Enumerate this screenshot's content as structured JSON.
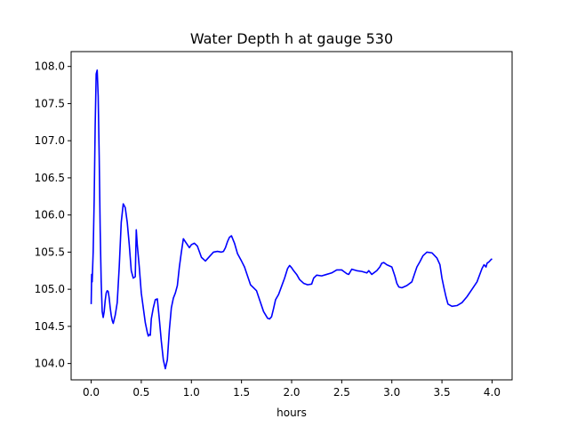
{
  "chart_data": {
    "type": "line",
    "title": "Water Depth h at gauge 530",
    "xlabel": "hours",
    "ylabel": "",
    "xlim": [
      -0.2,
      4.2
    ],
    "ylim": [
      103.78,
      108.2
    ],
    "xticks": [
      0.0,
      0.5,
      1.0,
      1.5,
      2.0,
      2.5,
      3.0,
      3.5,
      4.0
    ],
    "xtick_labels": [
      "0.0",
      "0.5",
      "1.0",
      "1.5",
      "2.0",
      "2.5",
      "3.0",
      "3.5",
      "4.0"
    ],
    "yticks": [
      104.0,
      104.5,
      105.0,
      105.5,
      106.0,
      106.5,
      107.0,
      107.5,
      108.0
    ],
    "ytick_labels": [
      "104.0",
      "104.5",
      "105.0",
      "105.5",
      "106.0",
      "106.5",
      "107.0",
      "107.5",
      "108.0"
    ],
    "grid": false,
    "series": [
      {
        "color": "#0000ff",
        "x": [
          0.0,
          0.005,
          0.01,
          0.015,
          0.02,
          0.03,
          0.04,
          0.05,
          0.06,
          0.07,
          0.08,
          0.09,
          0.1,
          0.11,
          0.12,
          0.13,
          0.14,
          0.15,
          0.16,
          0.17,
          0.18,
          0.19,
          0.2,
          0.21,
          0.22,
          0.24,
          0.26,
          0.28,
          0.3,
          0.32,
          0.34,
          0.36,
          0.38,
          0.4,
          0.42,
          0.44,
          0.45,
          0.46,
          0.48,
          0.5,
          0.52,
          0.54,
          0.56,
          0.57,
          0.58,
          0.59,
          0.6,
          0.62,
          0.64,
          0.66,
          0.68,
          0.7,
          0.72,
          0.74,
          0.76,
          0.78,
          0.8,
          0.82,
          0.84,
          0.86,
          0.88,
          0.9,
          0.92,
          0.95,
          0.98,
          1.0,
          1.03,
          1.06,
          1.1,
          1.14,
          1.18,
          1.22,
          1.26,
          1.3,
          1.32,
          1.34,
          1.36,
          1.38,
          1.4,
          1.43,
          1.46,
          1.5,
          1.53,
          1.56,
          1.59,
          1.62,
          1.65,
          1.68,
          1.72,
          1.76,
          1.78,
          1.8,
          1.82,
          1.84,
          1.87,
          1.9,
          1.93,
          1.96,
          1.98,
          2.0,
          2.02,
          2.05,
          2.08,
          2.12,
          2.16,
          2.2,
          2.22,
          2.25,
          2.3,
          2.35,
          2.4,
          2.45,
          2.5,
          2.52,
          2.54,
          2.55,
          2.57,
          2.6,
          2.65,
          2.7,
          2.75,
          2.77,
          2.8,
          2.85,
          2.88,
          2.9,
          2.92,
          2.95,
          3.0,
          3.03,
          3.05,
          3.07,
          3.1,
          3.15,
          3.2,
          3.23,
          3.25,
          3.28,
          3.31,
          3.35,
          3.4,
          3.45,
          3.48,
          3.5,
          3.52,
          3.54,
          3.56,
          3.6,
          3.65,
          3.7,
          3.75,
          3.8,
          3.85,
          3.9,
          3.92,
          3.94,
          3.95,
          3.97,
          3.99,
          4.0
        ],
        "y": [
          104.8,
          105.2,
          105.1,
          105.3,
          105.5,
          106.2,
          107.2,
          107.9,
          107.95,
          107.6,
          106.8,
          105.8,
          105.1,
          104.7,
          104.62,
          104.7,
          104.85,
          104.95,
          104.98,
          104.97,
          104.88,
          104.75,
          104.65,
          104.58,
          104.54,
          104.65,
          104.82,
          105.3,
          105.9,
          106.15,
          106.1,
          105.9,
          105.6,
          105.25,
          105.15,
          105.17,
          105.8,
          105.6,
          105.3,
          104.95,
          104.75,
          104.55,
          104.42,
          104.37,
          104.39,
          104.38,
          104.6,
          104.75,
          104.86,
          104.87,
          104.6,
          104.3,
          104.05,
          103.93,
          104.05,
          104.45,
          104.75,
          104.88,
          104.95,
          105.05,
          105.3,
          105.5,
          105.68,
          105.62,
          105.56,
          105.6,
          105.62,
          105.58,
          105.43,
          105.38,
          105.44,
          105.5,
          105.51,
          105.5,
          105.51,
          105.56,
          105.64,
          105.7,
          105.72,
          105.62,
          105.48,
          105.38,
          105.3,
          105.18,
          105.06,
          105.02,
          104.98,
          104.86,
          104.7,
          104.61,
          104.6,
          104.63,
          104.74,
          104.86,
          104.93,
          105.04,
          105.15,
          105.28,
          105.32,
          105.29,
          105.25,
          105.2,
          105.13,
          105.08,
          105.06,
          105.07,
          105.15,
          105.19,
          105.18,
          105.2,
          105.22,
          105.26,
          105.26,
          105.24,
          105.22,
          105.21,
          105.2,
          105.27,
          105.25,
          105.24,
          105.22,
          105.25,
          105.2,
          105.25,
          105.3,
          105.35,
          105.36,
          105.33,
          105.3,
          105.18,
          105.08,
          105.03,
          105.02,
          105.05,
          105.1,
          105.22,
          105.3,
          105.37,
          105.45,
          105.5,
          105.49,
          105.42,
          105.33,
          105.15,
          105.02,
          104.9,
          104.8,
          104.77,
          104.78,
          104.82,
          104.9,
          105.0,
          105.1,
          105.28,
          105.33,
          105.3,
          105.35,
          105.37,
          105.4,
          105.41
        ]
      }
    ]
  }
}
